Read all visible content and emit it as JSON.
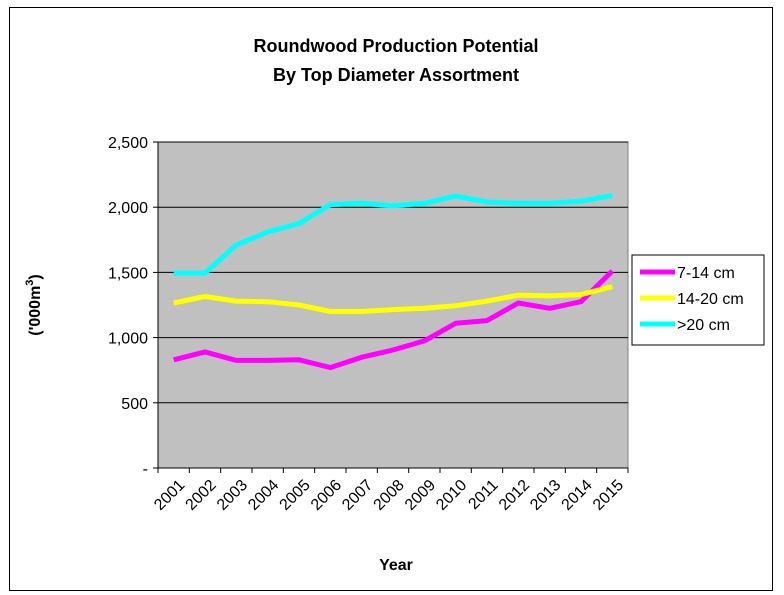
{
  "chart_data": {
    "type": "line",
    "title": "Roundwood Production Potential",
    "subtitle": "By Top Diameter Assortment",
    "xlabel": "Year",
    "ylabel_main": "('000m",
    "ylabel_sup": "3",
    "ylabel_close": ")",
    "categories": [
      "2001",
      "2002",
      "2003",
      "2004",
      "2005",
      "2006",
      "2007",
      "2008",
      "2009",
      "2010",
      "2011",
      "2012",
      "2013",
      "2014",
      "2015"
    ],
    "ylim": [
      0,
      2500
    ],
    "yticks": [
      {
        "value": 0,
        "label": "-"
      },
      {
        "value": 500,
        "label": "500"
      },
      {
        "value": 1000,
        "label": "1,000"
      },
      {
        "value": 1500,
        "label": "1,500"
      },
      {
        "value": 2000,
        "label": "2,000"
      },
      {
        "value": 2500,
        "label": "2,500"
      }
    ],
    "grid": true,
    "plot_background": "#c0c0c0",
    "legend_position": "right",
    "series": [
      {
        "name": "7-14 cm",
        "color": "#ff00ff",
        "values": [
          830,
          890,
          825,
          825,
          830,
          770,
          850,
          905,
          975,
          1110,
          1130,
          1265,
          1225,
          1275,
          1510
        ]
      },
      {
        "name": "14-20 cm",
        "color": "#ffff00",
        "values": [
          1265,
          1315,
          1280,
          1275,
          1250,
          1200,
          1200,
          1215,
          1225,
          1245,
          1280,
          1325,
          1320,
          1330,
          1390
        ]
      },
      {
        "name": ">20 cm",
        "color": "#00ffff",
        "values": [
          1495,
          1495,
          1710,
          1810,
          1875,
          2020,
          2030,
          2010,
          2030,
          2085,
          2040,
          2030,
          2030,
          2045,
          2090
        ]
      }
    ]
  }
}
